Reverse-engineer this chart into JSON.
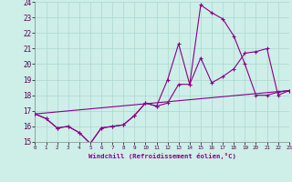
{
  "xlabel": "Windchill (Refroidissement éolien,°C)",
  "xlim": [
    0,
    23
  ],
  "ylim": [
    15,
    24
  ],
  "yticks": [
    15,
    16,
    17,
    18,
    19,
    20,
    21,
    22,
    23,
    24
  ],
  "xticks": [
    0,
    1,
    2,
    3,
    4,
    5,
    6,
    7,
    8,
    9,
    10,
    11,
    12,
    13,
    14,
    15,
    16,
    17,
    18,
    19,
    20,
    21,
    22,
    23
  ],
  "background_color": "#ceeee8",
  "grid_color": "#a8d8d0",
  "line_color": "#880088",
  "line1_x": [
    0,
    1,
    2,
    3,
    4,
    5,
    6,
    7,
    8,
    9,
    10,
    11,
    12,
    13,
    14,
    15,
    16,
    17,
    18,
    19,
    20,
    21,
    22,
    23
  ],
  "line1_y": [
    16.8,
    16.5,
    15.9,
    16.0,
    15.6,
    14.9,
    15.9,
    16.0,
    16.1,
    16.7,
    17.5,
    17.3,
    17.5,
    18.7,
    18.7,
    20.4,
    18.8,
    19.2,
    19.7,
    20.7,
    20.8,
    21.0,
    18.0,
    18.3
  ],
  "line2_x": [
    0,
    1,
    2,
    3,
    4,
    5,
    6,
    7,
    8,
    9,
    10,
    11,
    12,
    13,
    14,
    15,
    16,
    17,
    18,
    19,
    20,
    21,
    22,
    23
  ],
  "line2_y": [
    16.8,
    16.5,
    15.9,
    16.0,
    15.6,
    14.9,
    15.9,
    16.0,
    16.1,
    16.7,
    17.5,
    17.3,
    19.0,
    21.3,
    18.7,
    23.8,
    23.3,
    22.9,
    21.8,
    20.0,
    18.0,
    18.0,
    18.2,
    18.3
  ],
  "line3_x": [
    0,
    23
  ],
  "line3_y": [
    16.8,
    18.3
  ]
}
